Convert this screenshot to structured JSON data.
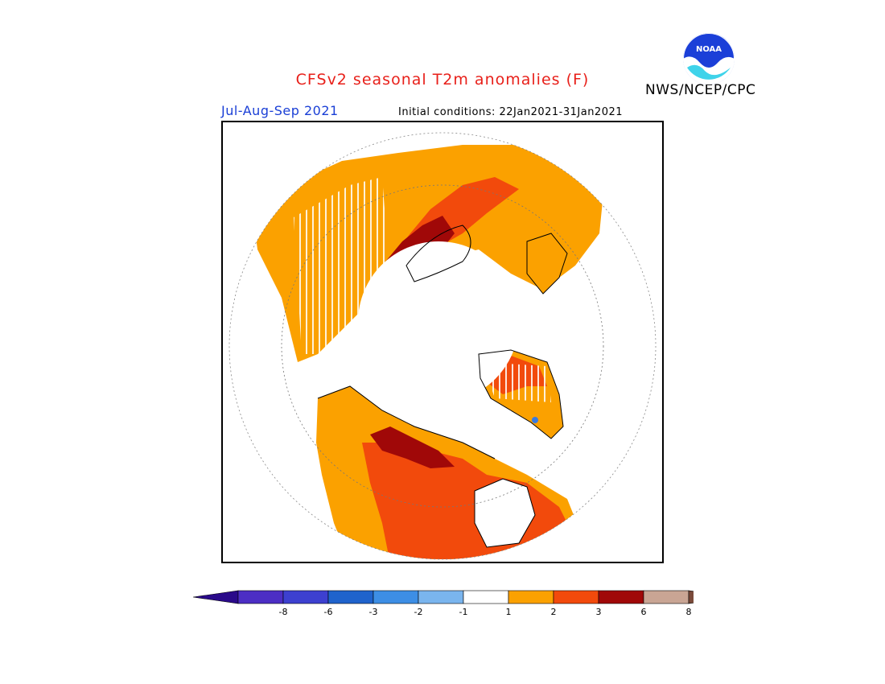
{
  "header": {
    "title": "CFSv2 seasonal T2m anomalies (F)",
    "season": "Jul-Aug-Sep 2021",
    "initial_conditions": "Initial conditions: 22Jan2021-31Jan2021",
    "agency": "NWS/NCEP/CPC",
    "logo_text": "NOAA",
    "logo_icon": "noaa-logo-icon"
  },
  "colors": {
    "title": "#e8201a",
    "season": "#1a3fd6",
    "white": "#ffffff",
    "orange": "#fba100",
    "red_orange": "#f24a0c",
    "dark_red": "#a00808",
    "blue_dot": "#3b7be0",
    "coast": "#000000"
  },
  "legend": {
    "ticks": [
      "-8",
      "-6",
      "-3",
      "-2",
      "-1",
      "1",
      "2",
      "3",
      "6",
      "8"
    ],
    "colors": [
      "#4c2ec4",
      "#3d40d0",
      "#1f63cc",
      "#3d8ee5",
      "#7ab5ee",
      "#ffffff",
      "#fba100",
      "#f24a0c",
      "#a00808",
      "#c9a594"
    ],
    "low_end_color": "#2a0a8a",
    "high_end_color": "#7a4a3a"
  }
}
